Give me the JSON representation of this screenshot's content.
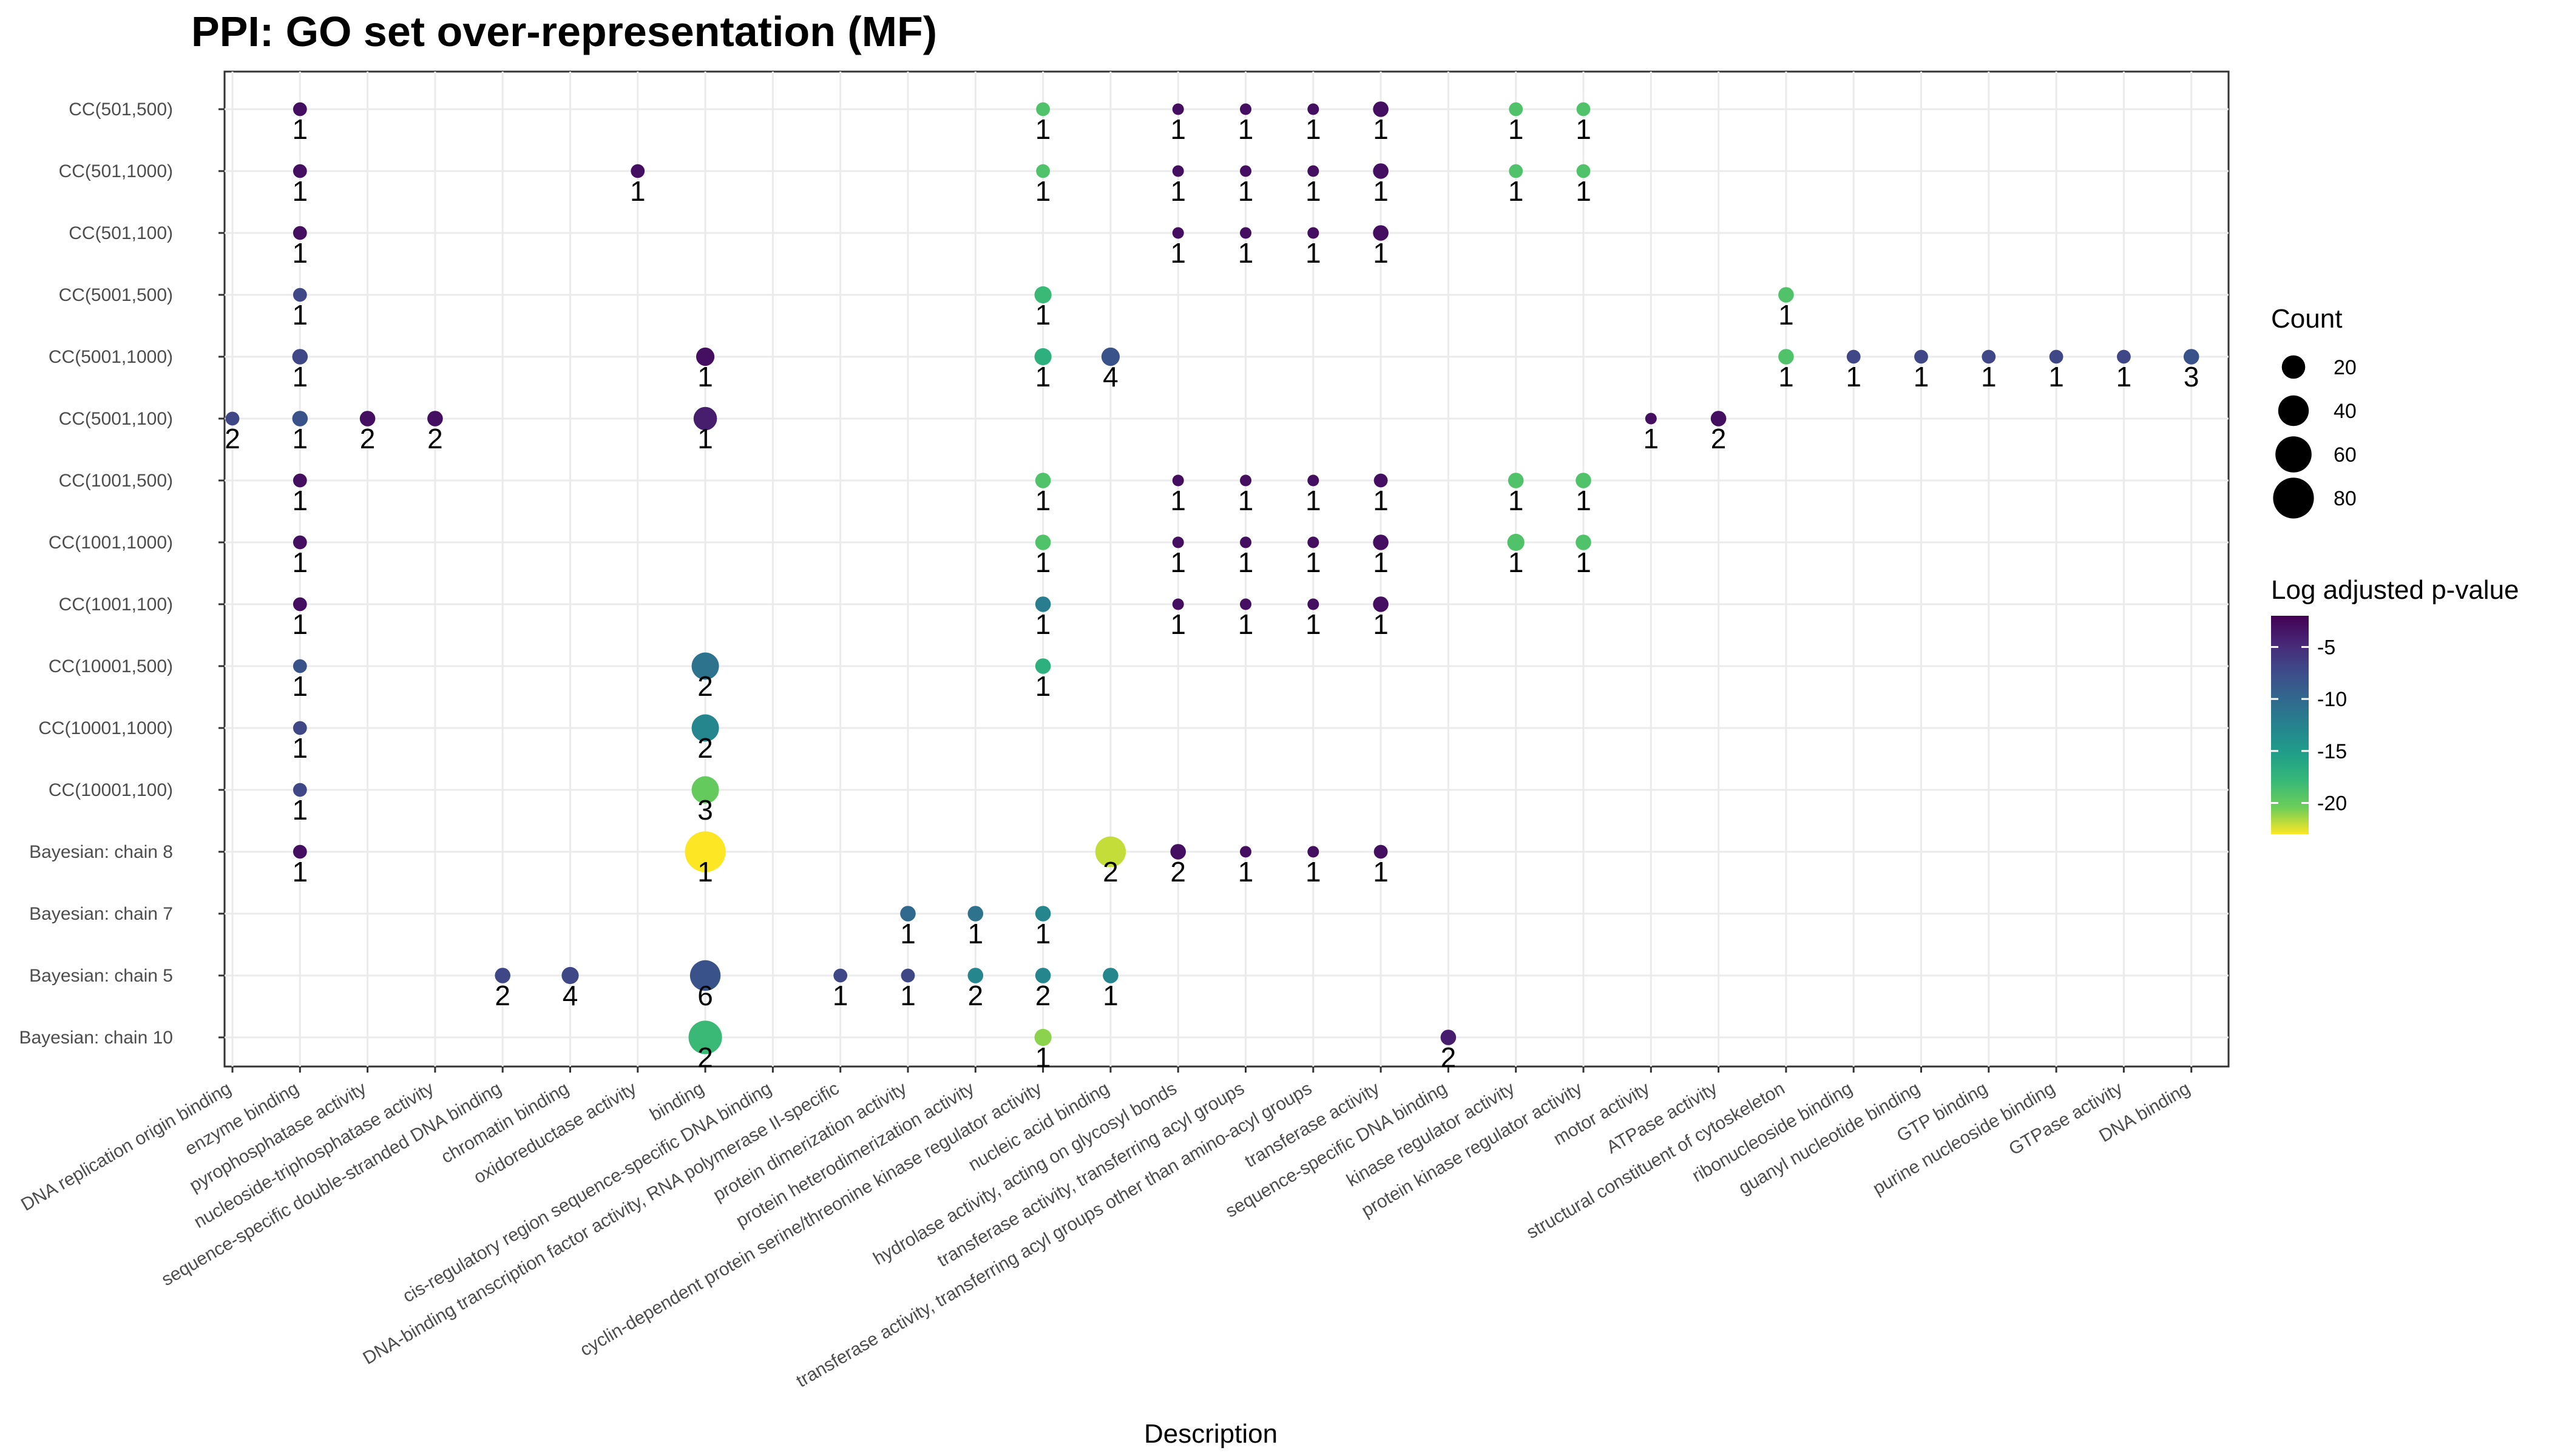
{
  "chart_data": {
    "type": "scatter",
    "title": "PPI: GO set over-representation (MF)",
    "xlabel": "Description",
    "ylabel": "",
    "grid": true,
    "legend_position": "right",
    "x_categories": [
      "DNA replication origin binding",
      "enzyme binding",
      "pyrophosphatase activity",
      "nucleoside-triphosphatase activity",
      "sequence-specific double-stranded DNA binding",
      "chromatin binding",
      "oxidoreductase activity",
      "binding",
      "cis-regulatory region sequence-specific DNA binding",
      "DNA-binding transcription factor activity, RNA polymerase II-specific",
      "protein dimerization activity",
      "protein heterodimerization activity",
      "cyclin-dependent protein serine/threonine kinase regulator activity",
      "nucleic acid binding",
      "hydrolase activity, acting on glycosyl bonds",
      "transferase activity, transferring acyl groups",
      "transferase activity, transferring acyl groups other than amino-acyl groups",
      "transferase activity",
      "sequence-specific DNA binding",
      "kinase regulator activity",
      "protein kinase regulator activity",
      "motor activity",
      "ATPase activity",
      "structural constituent of cytoskeleton",
      "ribonucleoside binding",
      "guanyl nucleotide binding",
      "GTP binding",
      "purine nucleoside binding",
      "GTPase activity",
      "DNA binding"
    ],
    "y_categories": [
      "CC(501,500)",
      "CC(501,1000)",
      "CC(501,100)",
      "CC(5001,500)",
      "CC(5001,1000)",
      "CC(5001,100)",
      "CC(1001,500)",
      "CC(1001,1000)",
      "CC(1001,100)",
      "CC(10001,500)",
      "CC(10001,1000)",
      "CC(10001,100)",
      "Bayesian: chain 8",
      "Bayesian: chain 7",
      "Bayesian: chain 5",
      "Bayesian: chain 10"
    ],
    "points": [
      {
        "x": "enzyme binding",
        "y": "CC(501,500)",
        "count": 4,
        "log_p": -3,
        "label": "1"
      },
      {
        "x": "cyclin-dependent protein serine/threonine kinase regulator activity",
        "y": "CC(501,500)",
        "count": 4,
        "log_p": -19,
        "label": "1"
      },
      {
        "x": "hydrolase activity, acting on glycosyl bonds",
        "y": "CC(501,500)",
        "count": 2,
        "log_p": -3,
        "label": "1"
      },
      {
        "x": "transferase activity, transferring acyl groups",
        "y": "CC(501,500)",
        "count": 2,
        "log_p": -3,
        "label": "1"
      },
      {
        "x": "transferase activity, transferring acyl groups other than amino-acyl groups",
        "y": "CC(501,500)",
        "count": 2,
        "log_p": -3,
        "label": "1"
      },
      {
        "x": "transferase activity",
        "y": "CC(501,500)",
        "count": 6,
        "log_p": -3,
        "label": "1"
      },
      {
        "x": "kinase regulator activity",
        "y": "CC(501,500)",
        "count": 4,
        "log_p": -19,
        "label": "1"
      },
      {
        "x": "protein kinase regulator activity",
        "y": "CC(501,500)",
        "count": 4,
        "log_p": -19,
        "label": "1"
      },
      {
        "x": "enzyme binding",
        "y": "CC(501,1000)",
        "count": 4,
        "log_p": -3,
        "label": "1"
      },
      {
        "x": "oxidoreductase activity",
        "y": "CC(501,1000)",
        "count": 4,
        "log_p": -3,
        "label": "1"
      },
      {
        "x": "cyclin-dependent protein serine/threonine kinase regulator activity",
        "y": "CC(501,1000)",
        "count": 4,
        "log_p": -19,
        "label": "1"
      },
      {
        "x": "hydrolase activity, acting on glycosyl bonds",
        "y": "CC(501,1000)",
        "count": 2,
        "log_p": -3,
        "label": "1"
      },
      {
        "x": "transferase activity, transferring acyl groups",
        "y": "CC(501,1000)",
        "count": 2,
        "log_p": -3,
        "label": "1"
      },
      {
        "x": "transferase activity, transferring acyl groups other than amino-acyl groups",
        "y": "CC(501,1000)",
        "count": 2,
        "log_p": -3,
        "label": "1"
      },
      {
        "x": "transferase activity",
        "y": "CC(501,1000)",
        "count": 6,
        "log_p": -3,
        "label": "1"
      },
      {
        "x": "kinase regulator activity",
        "y": "CC(501,1000)",
        "count": 4,
        "log_p": -19,
        "label": "1"
      },
      {
        "x": "protein kinase regulator activity",
        "y": "CC(501,1000)",
        "count": 4,
        "log_p": -19,
        "label": "1"
      },
      {
        "x": "enzyme binding",
        "y": "CC(501,100)",
        "count": 4,
        "log_p": -3,
        "label": "1"
      },
      {
        "x": "hydrolase activity, acting on glycosyl bonds",
        "y": "CC(501,100)",
        "count": 2,
        "log_p": -3,
        "label": "1"
      },
      {
        "x": "transferase activity, transferring acyl groups",
        "y": "CC(501,100)",
        "count": 2,
        "log_p": -3,
        "label": "1"
      },
      {
        "x": "transferase activity, transferring acyl groups other than amino-acyl groups",
        "y": "CC(501,100)",
        "count": 2,
        "log_p": -3,
        "label": "1"
      },
      {
        "x": "transferase activity",
        "y": "CC(501,100)",
        "count": 6,
        "log_p": -3,
        "label": "1"
      },
      {
        "x": "enzyme binding",
        "y": "CC(5001,500)",
        "count": 4,
        "log_p": -7,
        "label": "1"
      },
      {
        "x": "cyclin-dependent protein serine/threonine kinase regulator activity",
        "y": "CC(5001,500)",
        "count": 8,
        "log_p": -18,
        "label": "1"
      },
      {
        "x": "structural constituent of cytoskeleton",
        "y": "CC(5001,500)",
        "count": 6,
        "log_p": -19,
        "label": "1"
      },
      {
        "x": "enzyme binding",
        "y": "CC(5001,1000)",
        "count": 6,
        "log_p": -7,
        "label": "1"
      },
      {
        "x": "binding",
        "y": "CC(5001,1000)",
        "count": 10,
        "log_p": -3,
        "label": "1"
      },
      {
        "x": "cyclin-dependent protein serine/threonine kinase regulator activity",
        "y": "CC(5001,1000)",
        "count": 8,
        "log_p": -17,
        "label": "1"
      },
      {
        "x": "nucleic acid binding",
        "y": "CC(5001,1000)",
        "count": 10,
        "log_p": -8,
        "label": "4"
      },
      {
        "x": "structural constituent of cytoskeleton",
        "y": "CC(5001,1000)",
        "count": 6,
        "log_p": -19,
        "label": "1"
      },
      {
        "x": "ribonucleoside binding",
        "y": "CC(5001,1000)",
        "count": 4,
        "log_p": -7,
        "label": "1"
      },
      {
        "x": "guanyl nucleotide binding",
        "y": "CC(5001,1000)",
        "count": 4,
        "log_p": -7,
        "label": "1"
      },
      {
        "x": "GTP binding",
        "y": "CC(5001,1000)",
        "count": 4,
        "log_p": -7,
        "label": "1"
      },
      {
        "x": "purine nucleoside binding",
        "y": "CC(5001,1000)",
        "count": 4,
        "log_p": -7,
        "label": "1"
      },
      {
        "x": "GTPase activity",
        "y": "CC(5001,1000)",
        "count": 4,
        "log_p": -7,
        "label": "1"
      },
      {
        "x": "DNA binding",
        "y": "CC(5001,1000)",
        "count": 6,
        "log_p": -8,
        "label": "3"
      },
      {
        "x": "DNA replication origin binding",
        "y": "CC(5001,100)",
        "count": 4,
        "log_p": -7,
        "label": "2"
      },
      {
        "x": "enzyme binding",
        "y": "CC(5001,100)",
        "count": 6,
        "log_p": -8,
        "label": "1"
      },
      {
        "x": "pyrophosphatase activity",
        "y": "CC(5001,100)",
        "count": 6,
        "log_p": -3,
        "label": "2"
      },
      {
        "x": "nucleoside-triphosphatase activity",
        "y": "CC(5001,100)",
        "count": 6,
        "log_p": -3,
        "label": "2"
      },
      {
        "x": "binding",
        "y": "CC(5001,100)",
        "count": 20,
        "log_p": -4,
        "label": "1"
      },
      {
        "x": "motor activity",
        "y": "CC(5001,100)",
        "count": 2,
        "log_p": -3,
        "label": "1"
      },
      {
        "x": "ATPase activity",
        "y": "CC(5001,100)",
        "count": 6,
        "log_p": -3,
        "label": "2"
      },
      {
        "x": "enzyme binding",
        "y": "CC(1001,500)",
        "count": 4,
        "log_p": -3,
        "label": "1"
      },
      {
        "x": "cyclin-dependent protein serine/threonine kinase regulator activity",
        "y": "CC(1001,500)",
        "count": 6,
        "log_p": -19,
        "label": "1"
      },
      {
        "x": "hydrolase activity, acting on glycosyl bonds",
        "y": "CC(1001,500)",
        "count": 2,
        "log_p": -3,
        "label": "1"
      },
      {
        "x": "transferase activity, transferring acyl groups",
        "y": "CC(1001,500)",
        "count": 2,
        "log_p": -3,
        "label": "1"
      },
      {
        "x": "transferase activity, transferring acyl groups other than amino-acyl groups",
        "y": "CC(1001,500)",
        "count": 2,
        "log_p": -3,
        "label": "1"
      },
      {
        "x": "transferase activity",
        "y": "CC(1001,500)",
        "count": 4,
        "log_p": -3,
        "label": "1"
      },
      {
        "x": "kinase regulator activity",
        "y": "CC(1001,500)",
        "count": 6,
        "log_p": -19,
        "label": "1"
      },
      {
        "x": "protein kinase regulator activity",
        "y": "CC(1001,500)",
        "count": 6,
        "log_p": -19,
        "label": "1"
      },
      {
        "x": "enzyme binding",
        "y": "CC(1001,1000)",
        "count": 4,
        "log_p": -3,
        "label": "1"
      },
      {
        "x": "cyclin-dependent protein serine/threonine kinase regulator activity",
        "y": "CC(1001,1000)",
        "count": 6,
        "log_p": -19,
        "label": "1"
      },
      {
        "x": "hydrolase activity, acting on glycosyl bonds",
        "y": "CC(1001,1000)",
        "count": 2,
        "log_p": -3,
        "label": "1"
      },
      {
        "x": "transferase activity, transferring acyl groups",
        "y": "CC(1001,1000)",
        "count": 2,
        "log_p": -3,
        "label": "1"
      },
      {
        "x": "transferase activity, transferring acyl groups other than amino-acyl groups",
        "y": "CC(1001,1000)",
        "count": 2,
        "log_p": -3,
        "label": "1"
      },
      {
        "x": "transferase activity",
        "y": "CC(1001,1000)",
        "count": 6,
        "log_p": -3,
        "label": "1"
      },
      {
        "x": "kinase regulator activity",
        "y": "CC(1001,1000)",
        "count": 8,
        "log_p": -19,
        "label": "1"
      },
      {
        "x": "protein kinase regulator activity",
        "y": "CC(1001,1000)",
        "count": 6,
        "log_p": -19,
        "label": "1"
      },
      {
        "x": "enzyme binding",
        "y": "CC(1001,100)",
        "count": 4,
        "log_p": -3,
        "label": "1"
      },
      {
        "x": "cyclin-dependent protein serine/threonine kinase regulator activity",
        "y": "CC(1001,100)",
        "count": 6,
        "log_p": -12,
        "label": "1"
      },
      {
        "x": "hydrolase activity, acting on glycosyl bonds",
        "y": "CC(1001,100)",
        "count": 2,
        "log_p": -3,
        "label": "1"
      },
      {
        "x": "transferase activity, transferring acyl groups",
        "y": "CC(1001,100)",
        "count": 2,
        "log_p": -3,
        "label": "1"
      },
      {
        "x": "transferase activity, transferring acyl groups other than amino-acyl groups",
        "y": "CC(1001,100)",
        "count": 2,
        "log_p": -3,
        "label": "1"
      },
      {
        "x": "transferase activity",
        "y": "CC(1001,100)",
        "count": 6,
        "log_p": -3,
        "label": "1"
      },
      {
        "x": "enzyme binding",
        "y": "CC(10001,500)",
        "count": 4,
        "log_p": -8,
        "label": "1"
      },
      {
        "x": "binding",
        "y": "CC(10001,500)",
        "count": 30,
        "log_p": -11,
        "label": "2"
      },
      {
        "x": "cyclin-dependent protein serine/threonine kinase regulator activity",
        "y": "CC(10001,500)",
        "count": 6,
        "log_p": -17,
        "label": "1"
      },
      {
        "x": "enzyme binding",
        "y": "CC(10001,1000)",
        "count": 4,
        "log_p": -7,
        "label": "1"
      },
      {
        "x": "binding",
        "y": "CC(10001,1000)",
        "count": 30,
        "log_p": -13,
        "label": "2"
      },
      {
        "x": "enzyme binding",
        "y": "CC(10001,100)",
        "count": 4,
        "log_p": -7,
        "label": "1"
      },
      {
        "x": "binding",
        "y": "CC(10001,100)",
        "count": 30,
        "log_p": -20,
        "label": "3"
      },
      {
        "x": "enzyme binding",
        "y": "Bayesian: chain 8",
        "count": 4,
        "log_p": -3,
        "label": "1"
      },
      {
        "x": "binding",
        "y": "Bayesian: chain 8",
        "count": 80,
        "log_p": -23,
        "label": "1"
      },
      {
        "x": "nucleic acid binding",
        "y": "Bayesian: chain 8",
        "count": 40,
        "log_p": -22,
        "label": "2"
      },
      {
        "x": "hydrolase activity, acting on glycosyl bonds",
        "y": "Bayesian: chain 8",
        "count": 6,
        "log_p": -3,
        "label": "2"
      },
      {
        "x": "transferase activity, transferring acyl groups",
        "y": "Bayesian: chain 8",
        "count": 2,
        "log_p": -3,
        "label": "1"
      },
      {
        "x": "transferase activity, transferring acyl groups other than amino-acyl groups",
        "y": "Bayesian: chain 8",
        "count": 2,
        "log_p": -3,
        "label": "1"
      },
      {
        "x": "transferase activity",
        "y": "Bayesian: chain 8",
        "count": 4,
        "log_p": -3,
        "label": "1"
      },
      {
        "x": "protein dimerization activity",
        "y": "Bayesian: chain 7",
        "count": 6,
        "log_p": -10,
        "label": "1"
      },
      {
        "x": "protein heterodimerization activity",
        "y": "Bayesian: chain 7",
        "count": 6,
        "log_p": -11,
        "label": "1"
      },
      {
        "x": "cyclin-dependent protein serine/threonine kinase regulator activity",
        "y": "Bayesian: chain 7",
        "count": 6,
        "log_p": -13,
        "label": "1"
      },
      {
        "x": "sequence-specific double-stranded DNA binding",
        "y": "Bayesian: chain 5",
        "count": 6,
        "log_p": -7,
        "label": "2"
      },
      {
        "x": "chromatin binding",
        "y": "Bayesian: chain 5",
        "count": 8,
        "log_p": -7,
        "label": "4"
      },
      {
        "x": "DNA-binding transcription factor activity, RNA polymerase II-specific",
        "y": "Bayesian: chain 5",
        "count": 4,
        "log_p": -7,
        "label": "1"
      },
      {
        "x": "protein dimerization activity",
        "y": "Bayesian: chain 5",
        "count": 4,
        "log_p": -7,
        "label": "1"
      },
      {
        "x": "protein heterodimerization activity",
        "y": "Bayesian: chain 5",
        "count": 6,
        "log_p": -13,
        "label": "2"
      },
      {
        "x": "cyclin-dependent protein serine/threonine kinase regulator activity",
        "y": "Bayesian: chain 5",
        "count": 6,
        "log_p": -13,
        "label": "2"
      },
      {
        "x": "nucleic acid binding",
        "y": "Bayesian: chain 5",
        "count": 6,
        "log_p": -13,
        "label": "1"
      },
      {
        "x": "binding",
        "y": "Bayesian: chain 5",
        "count": 40,
        "log_p": -8,
        "label": "6"
      },
      {
        "x": "binding",
        "y": "Bayesian: chain 10",
        "count": 50,
        "log_p": -18,
        "label": "2"
      },
      {
        "x": "cyclin-dependent protein serine/threonine kinase regulator activity",
        "y": "Bayesian: chain 10",
        "count": 8,
        "log_p": -21,
        "label": "1"
      },
      {
        "x": "sequence-specific DNA binding",
        "y": "Bayesian: chain 10",
        "count": 6,
        "log_p": -4,
        "label": "2"
      }
    ],
    "size_legend": {
      "title": "Count",
      "values": [
        20,
        40,
        60,
        80
      ]
    },
    "color_legend": {
      "title": "Log adjusted p-value",
      "ticks": [
        -5,
        -10,
        -15,
        -20
      ],
      "range": [
        -23,
        -2
      ]
    }
  }
}
